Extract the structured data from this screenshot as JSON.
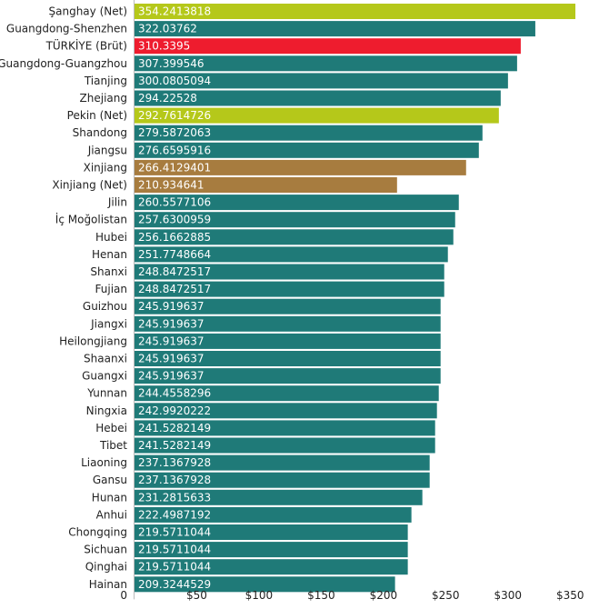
{
  "chart_data": {
    "type": "bar",
    "orientation": "horizontal",
    "title": "",
    "xlabel": "",
    "ylabel": "",
    "xlim": [
      0,
      370
    ],
    "x_ticks": [
      {
        "value": 0,
        "label": "0"
      },
      {
        "value": 50,
        "label": "$50"
      },
      {
        "value": 100,
        "label": "$100"
      },
      {
        "value": 150,
        "label": "$150"
      },
      {
        "value": 200,
        "label": "$200"
      },
      {
        "value": 250,
        "label": "$250"
      },
      {
        "value": 300,
        "label": "$300"
      },
      {
        "value": 350,
        "label": "$350"
      }
    ],
    "grid": false,
    "legend": "none",
    "colors": {
      "default": "#1f7a78",
      "highlight_net": "#b5c81a",
      "turkey": "#ee1c2e",
      "xinjiang": "#a77c3f"
    },
    "bars": [
      {
        "category": "Şanghay (Net)",
        "value": 354.2413818,
        "label": "354.2413818",
        "color": "#b5c81a"
      },
      {
        "category": "Guangdong-Shenzhen",
        "value": 322.03762,
        "label": "322.03762",
        "color": "#1f7a78"
      },
      {
        "category": "TÜRKİYE (Brüt)",
        "value": 310.3395,
        "label": "310.3395",
        "color": "#ee1c2e"
      },
      {
        "category": "Guangdong-Guangzhou",
        "value": 307.399546,
        "label": "307.399546",
        "color": "#1f7a78"
      },
      {
        "category": "Tianjing",
        "value": 300.0805094,
        "label": "300.0805094",
        "color": "#1f7a78"
      },
      {
        "category": "Zhejiang",
        "value": 294.22528,
        "label": "294.22528",
        "color": "#1f7a78"
      },
      {
        "category": "Pekin (Net)",
        "value": 292.7614726,
        "label": "292.7614726",
        "color": "#b5c81a"
      },
      {
        "category": "Shandong",
        "value": 279.5872063,
        "label": "279.5872063",
        "color": "#1f7a78"
      },
      {
        "category": "Jiangsu",
        "value": 276.6595916,
        "label": "276.6595916",
        "color": "#1f7a78"
      },
      {
        "category": "Xinjiang",
        "value": 266.4129401,
        "label": "266.4129401",
        "color": "#a77c3f"
      },
      {
        "category": "Xinjiang (Net)",
        "value": 210.934641,
        "label": "210.934641",
        "color": "#a77c3f"
      },
      {
        "category": "Jilin",
        "value": 260.5577106,
        "label": "260.5577106",
        "color": "#1f7a78"
      },
      {
        "category": "İç Moğolistan",
        "value": 257.6300959,
        "label": "257.6300959",
        "color": "#1f7a78"
      },
      {
        "category": "Hubei",
        "value": 256.1662885,
        "label": "256.1662885",
        "color": "#1f7a78"
      },
      {
        "category": "Henan",
        "value": 251.7748664,
        "label": "251.7748664",
        "color": "#1f7a78"
      },
      {
        "category": "Shanxi",
        "value": 248.8472517,
        "label": "248.8472517",
        "color": "#1f7a78"
      },
      {
        "category": "Fujian",
        "value": 248.8472517,
        "label": "248.8472517",
        "color": "#1f7a78"
      },
      {
        "category": "Guizhou",
        "value": 245.919637,
        "label": "245.919637",
        "color": "#1f7a78"
      },
      {
        "category": "Jiangxi",
        "value": 245.919637,
        "label": "245.919637",
        "color": "#1f7a78"
      },
      {
        "category": "Heilongjiang",
        "value": 245.919637,
        "label": "245.919637",
        "color": "#1f7a78"
      },
      {
        "category": "Shaanxi",
        "value": 245.919637,
        "label": "245.919637",
        "color": "#1f7a78"
      },
      {
        "category": "Guangxi",
        "value": 245.919637,
        "label": "245.919637",
        "color": "#1f7a78"
      },
      {
        "category": "Yunnan",
        "value": 244.4558296,
        "label": "244.4558296",
        "color": "#1f7a78"
      },
      {
        "category": "Ningxia",
        "value": 242.9920222,
        "label": "242.9920222",
        "color": "#1f7a78"
      },
      {
        "category": "Hebei",
        "value": 241.5282149,
        "label": "241.5282149",
        "color": "#1f7a78"
      },
      {
        "category": "Tibet",
        "value": 241.5282149,
        "label": "241.5282149",
        "color": "#1f7a78"
      },
      {
        "category": "Liaoning",
        "value": 237.1367928,
        "label": "237.1367928",
        "color": "#1f7a78"
      },
      {
        "category": "Gansu",
        "value": 237.1367928,
        "label": "237.1367928",
        "color": "#1f7a78"
      },
      {
        "category": "Hunan",
        "value": 231.2815633,
        "label": "231.2815633",
        "color": "#1f7a78"
      },
      {
        "category": "Anhui",
        "value": 222.4987192,
        "label": "222.4987192",
        "color": "#1f7a78"
      },
      {
        "category": "Chongqing",
        "value": 219.5711044,
        "label": "219.5711044",
        "color": "#1f7a78"
      },
      {
        "category": "Sichuan",
        "value": 219.5711044,
        "label": "219.5711044",
        "color": "#1f7a78"
      },
      {
        "category": "Qinghai",
        "value": 219.5711044,
        "label": "219.5711044",
        "color": "#1f7a78"
      },
      {
        "category": "Hainan",
        "value": 209.3244529,
        "label": "209.3244529",
        "color": "#1f7a78"
      }
    ]
  }
}
